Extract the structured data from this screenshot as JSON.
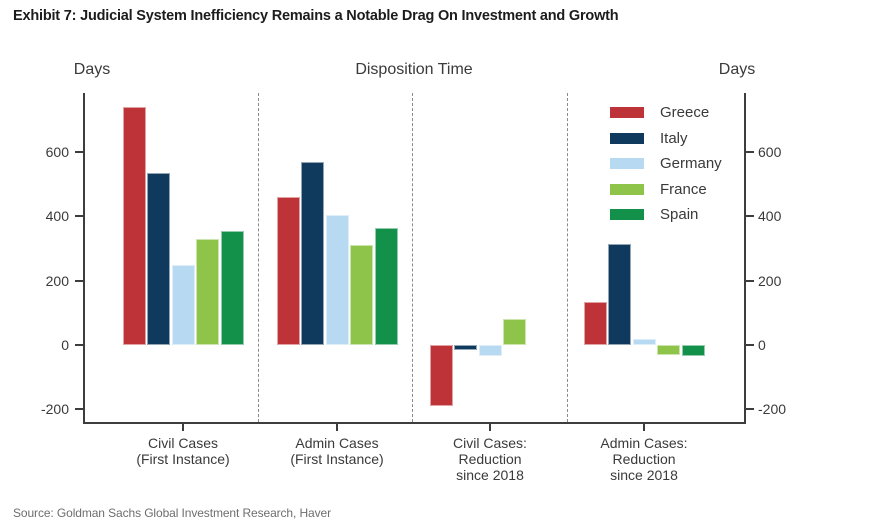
{
  "exhibit": {
    "title": "Exhibit 7: Judicial System Inefficiency Remains a Notable Drag On Investment and Growth",
    "source": "Source: Goldman Sachs Global Investment Research, Haver"
  },
  "chart_data": {
    "type": "bar",
    "title": "Disposition Time",
    "left_axis_label": "Days",
    "right_axis_label": "Days",
    "unit": "days",
    "y_ticks": [
      600,
      400,
      200,
      0,
      -200
    ],
    "ylim": [
      -240,
      780
    ],
    "grid": false,
    "legend_position": "top-right",
    "category_separators": "dashed-vertical",
    "categories": [
      [
        "Civil Cases",
        "(First Instance)"
      ],
      [
        "Admin Cases",
        "(First Instance)"
      ],
      [
        "Civil Cases:",
        "Reduction",
        "since 2018"
      ],
      [
        "Admin Cases:",
        "Reduction",
        "since 2018"
      ]
    ],
    "series": [
      {
        "name": "Greece",
        "color": "#BE3338",
        "values": [
          740,
          460,
          -190,
          135
        ]
      },
      {
        "name": "Italy",
        "color": "#0F3A5D",
        "values": [
          535,
          570,
          -15,
          315
        ]
      },
      {
        "name": "Germany",
        "color": "#B7D9F1",
        "values": [
          250,
          405,
          -35,
          20
        ]
      },
      {
        "name": "France",
        "color": "#8EC449",
        "values": [
          330,
          310,
          80,
          -30
        ]
      },
      {
        "name": "Spain",
        "color": "#13914A",
        "values": [
          355,
          365,
          0,
          -35
        ]
      }
    ]
  }
}
